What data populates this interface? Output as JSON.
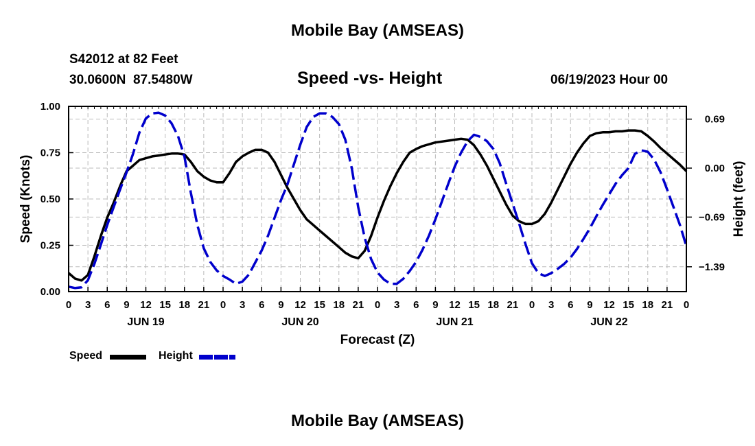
{
  "page": {
    "title_top": "Mobile Bay (AMSEAS)",
    "station": "S42012 at 82 Feet",
    "coords": "30.0600N  87.5480W",
    "subtitle": "Speed -vs- Height",
    "datetime": "06/19/2023 Hour 00",
    "title_bottom": "Mobile Bay (AMSEAS)"
  },
  "chart_data": {
    "type": "line",
    "xlabel": "Forecast (Z)",
    "ylabel_left": "Speed (Knots)",
    "ylabel_right": "Height (feet)",
    "x_range": [
      0,
      96
    ],
    "x_ticks": [
      0,
      3,
      6,
      9,
      12,
      15,
      18,
      21,
      24,
      27,
      30,
      33,
      36,
      39,
      42,
      45,
      48,
      51,
      54,
      57,
      60,
      63,
      66,
      69,
      72,
      75,
      78,
      81,
      84,
      87,
      90,
      93,
      96
    ],
    "x_tick_labels": [
      "0",
      "3",
      "6",
      "9",
      "12",
      "15",
      "18",
      "21",
      "0",
      "3",
      "6",
      "9",
      "12",
      "15",
      "18",
      "21",
      "0",
      "3",
      "6",
      "9",
      "12",
      "15",
      "18",
      "21",
      "0",
      "3",
      "6",
      "9",
      "12",
      "15",
      "18",
      "21",
      "0"
    ],
    "day_labels": [
      {
        "x": 12,
        "label": "JUN 19"
      },
      {
        "x": 36,
        "label": "JUN 20"
      },
      {
        "x": 60,
        "label": "JUN 21"
      },
      {
        "x": 84,
        "label": "JUN 22"
      }
    ],
    "y_left": {
      "range": [
        0,
        1
      ],
      "ticks": [
        0,
        0.25,
        0.5,
        0.75,
        1.0
      ],
      "tick_labels": [
        "0.00",
        "0.25",
        "0.50",
        "0.75",
        "1.00"
      ]
    },
    "y_right": {
      "range": [
        -1.74,
        0.87
      ],
      "ticks": [
        -1.39,
        -0.69,
        0.0,
        0.69
      ],
      "tick_labels": [
        "−1.39",
        "−0.69",
        "0.00",
        "0.69"
      ]
    },
    "grid": true,
    "legend_position": "bottom-left",
    "series": [
      {
        "name": "Speed",
        "axis": "left",
        "color": "#000000",
        "style": "solid",
        "x": [
          0,
          1,
          2,
          3,
          4,
          5,
          6,
          7,
          8,
          9,
          10,
          11,
          12,
          13,
          14,
          15,
          16,
          17,
          18,
          19,
          20,
          21,
          22,
          23,
          24,
          25,
          26,
          27,
          28,
          29,
          30,
          31,
          32,
          33,
          34,
          35,
          36,
          37,
          38,
          39,
          40,
          41,
          42,
          43,
          44,
          45,
          46,
          47,
          48,
          49,
          50,
          51,
          52,
          53,
          54,
          55,
          56,
          57,
          58,
          59,
          60,
          61,
          62,
          63,
          64,
          65,
          66,
          67,
          68,
          69,
          70,
          71,
          72,
          73,
          74,
          75,
          76,
          77,
          78,
          79,
          80,
          81,
          82,
          83,
          84,
          85,
          86,
          87,
          88,
          89,
          90,
          91,
          92,
          93,
          94,
          95,
          96
        ],
        "values": [
          0.1,
          0.07,
          0.06,
          0.09,
          0.19,
          0.3,
          0.4,
          0.48,
          0.57,
          0.65,
          0.68,
          0.71,
          0.72,
          0.73,
          0.735,
          0.74,
          0.745,
          0.745,
          0.74,
          0.7,
          0.65,
          0.62,
          0.6,
          0.59,
          0.59,
          0.64,
          0.7,
          0.73,
          0.75,
          0.765,
          0.765,
          0.75,
          0.7,
          0.63,
          0.56,
          0.5,
          0.44,
          0.39,
          0.36,
          0.33,
          0.3,
          0.27,
          0.24,
          0.21,
          0.19,
          0.18,
          0.22,
          0.3,
          0.4,
          0.49,
          0.57,
          0.64,
          0.7,
          0.75,
          0.77,
          0.785,
          0.795,
          0.805,
          0.81,
          0.815,
          0.82,
          0.825,
          0.82,
          0.79,
          0.74,
          0.68,
          0.61,
          0.54,
          0.47,
          0.41,
          0.38,
          0.365,
          0.365,
          0.38,
          0.42,
          0.48,
          0.55,
          0.62,
          0.69,
          0.75,
          0.8,
          0.84,
          0.855,
          0.86,
          0.86,
          0.865,
          0.865,
          0.87,
          0.87,
          0.865,
          0.84,
          0.81,
          0.775,
          0.745,
          0.715,
          0.685,
          0.65
        ]
      },
      {
        "name": "Height",
        "axis": "right",
        "color": "#0000cc",
        "style": "dashed",
        "x": [
          0,
          1,
          2,
          3,
          4,
          5,
          6,
          7,
          8,
          9,
          10,
          11,
          12,
          13,
          14,
          15,
          16,
          17,
          18,
          19,
          20,
          21,
          22,
          23,
          24,
          25,
          26,
          27,
          28,
          29,
          30,
          31,
          32,
          33,
          34,
          35,
          36,
          37,
          38,
          39,
          40,
          41,
          42,
          43,
          44,
          45,
          46,
          47,
          48,
          49,
          50,
          51,
          52,
          53,
          54,
          55,
          56,
          57,
          58,
          59,
          60,
          61,
          62,
          63,
          64,
          65,
          66,
          67,
          68,
          69,
          70,
          71,
          72,
          73,
          74,
          75,
          76,
          77,
          78,
          79,
          80,
          81,
          82,
          83,
          84,
          85,
          86,
          87,
          88,
          89,
          90,
          91,
          92,
          93,
          94,
          95,
          96
        ],
        "values": [
          -1.67,
          -1.69,
          -1.68,
          -1.58,
          -1.35,
          -1.08,
          -0.8,
          -0.55,
          -0.3,
          -0.06,
          0.2,
          0.5,
          0.7,
          0.77,
          0.78,
          0.74,
          0.63,
          0.45,
          0.16,
          -0.35,
          -0.8,
          -1.13,
          -1.32,
          -1.44,
          -1.52,
          -1.57,
          -1.63,
          -1.6,
          -1.5,
          -1.33,
          -1.16,
          -0.95,
          -0.7,
          -0.45,
          -0.23,
          0.05,
          0.33,
          0.58,
          0.72,
          0.77,
          0.77,
          0.72,
          0.62,
          0.4,
          0.0,
          -0.55,
          -0.98,
          -1.28,
          -1.47,
          -1.57,
          -1.63,
          -1.63,
          -1.56,
          -1.45,
          -1.32,
          -1.15,
          -0.95,
          -0.72,
          -0.47,
          -0.22,
          0.02,
          0.22,
          0.38,
          0.47,
          0.44,
          0.38,
          0.27,
          0.07,
          -0.22,
          -0.5,
          -0.78,
          -1.07,
          -1.34,
          -1.48,
          -1.52,
          -1.48,
          -1.42,
          -1.35,
          -1.26,
          -1.14,
          -1.0,
          -0.85,
          -0.68,
          -0.52,
          -0.37,
          -0.22,
          -0.1,
          0.0,
          0.2,
          0.25,
          0.23,
          0.12,
          -0.06,
          -0.3,
          -0.55,
          -0.8,
          -1.1
        ]
      }
    ]
  }
}
